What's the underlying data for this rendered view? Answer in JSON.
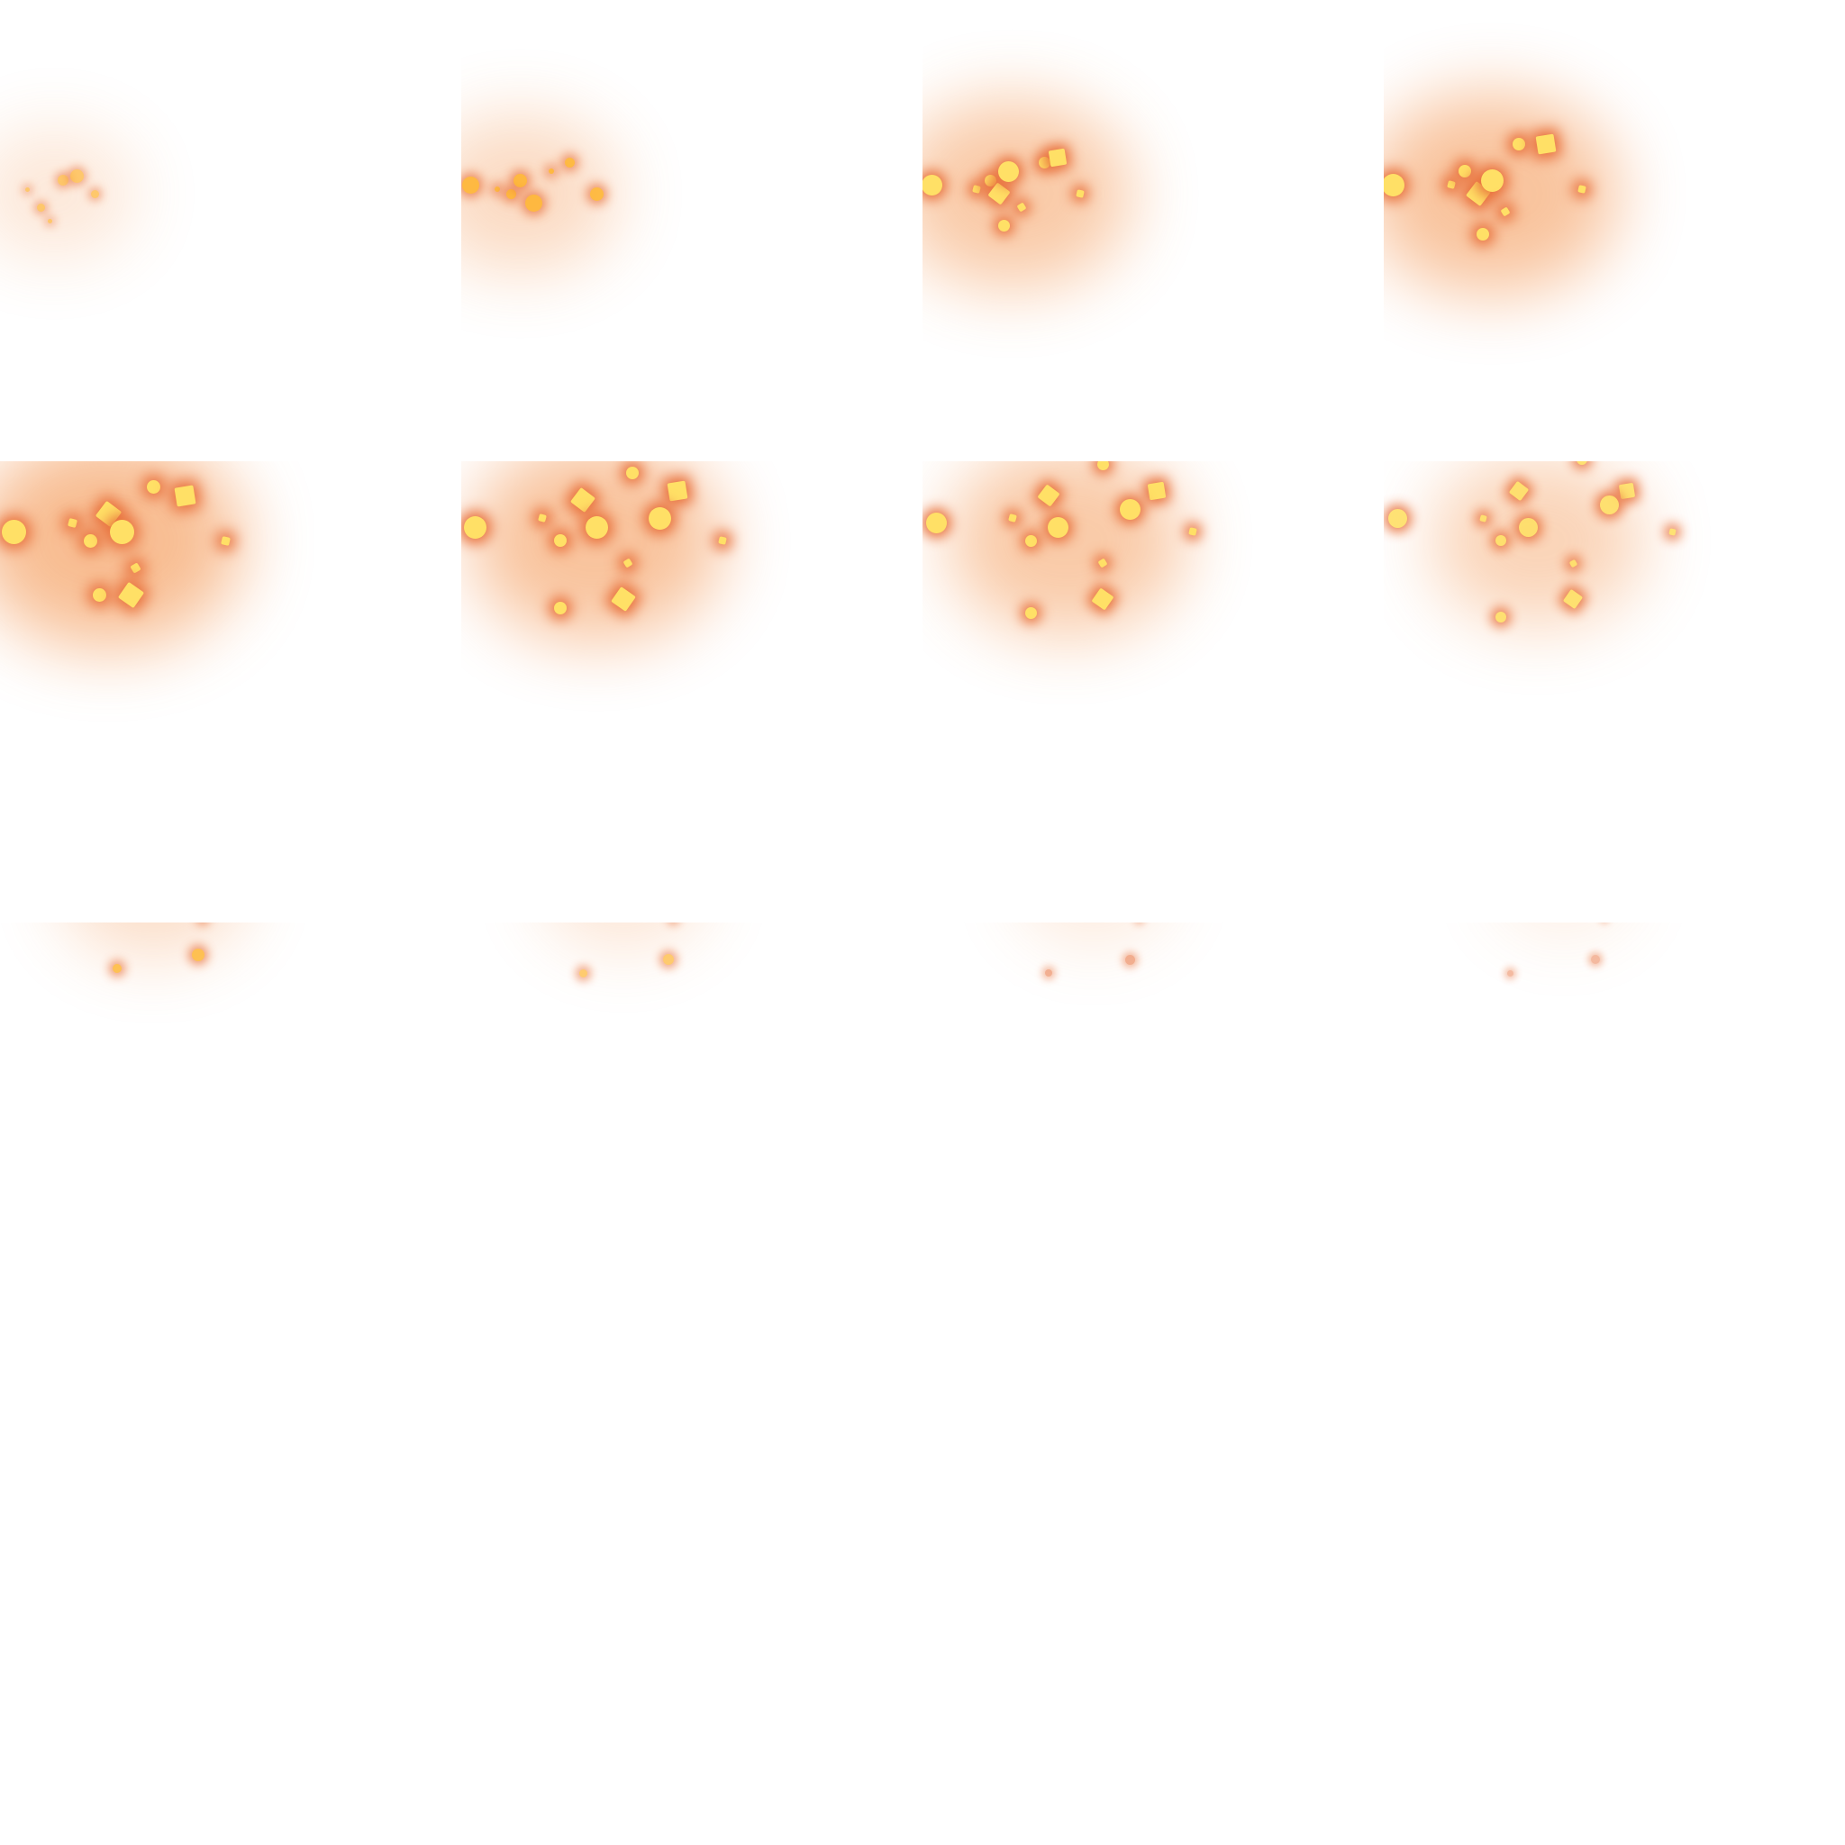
{
  "sprite_sheet": {
    "columns": 4,
    "rows": 4,
    "frame_count": 16,
    "description_free": true,
    "colors": {
      "background": "#ffffff",
      "glow": "#f2883a",
      "spark_core": "#ffe066",
      "spark_mid": "#ffb020",
      "spark_edge": "#e8703a"
    },
    "frames": [
      {
        "index": 1,
        "intensity": 0.35
      },
      {
        "index": 2,
        "intensity": 0.55
      },
      {
        "index": 3,
        "intensity": 0.8
      },
      {
        "index": 4,
        "intensity": 0.9
      },
      {
        "index": 5,
        "intensity": 1.0
      },
      {
        "index": 6,
        "intensity": 0.9
      },
      {
        "index": 7,
        "intensity": 0.8
      },
      {
        "index": 8,
        "intensity": 0.65
      },
      {
        "index": 9,
        "intensity": 0.5
      },
      {
        "index": 10,
        "intensity": 0.38
      },
      {
        "index": 11,
        "intensity": 0.3
      },
      {
        "index": 12,
        "intensity": 0.22
      },
      {
        "index": 13,
        "intensity": 0.16
      },
      {
        "index": 14,
        "intensity": 0.1
      },
      {
        "index": 15,
        "intensity": 0.06
      },
      {
        "index": 16,
        "intensity": 0.03
      }
    ]
  }
}
